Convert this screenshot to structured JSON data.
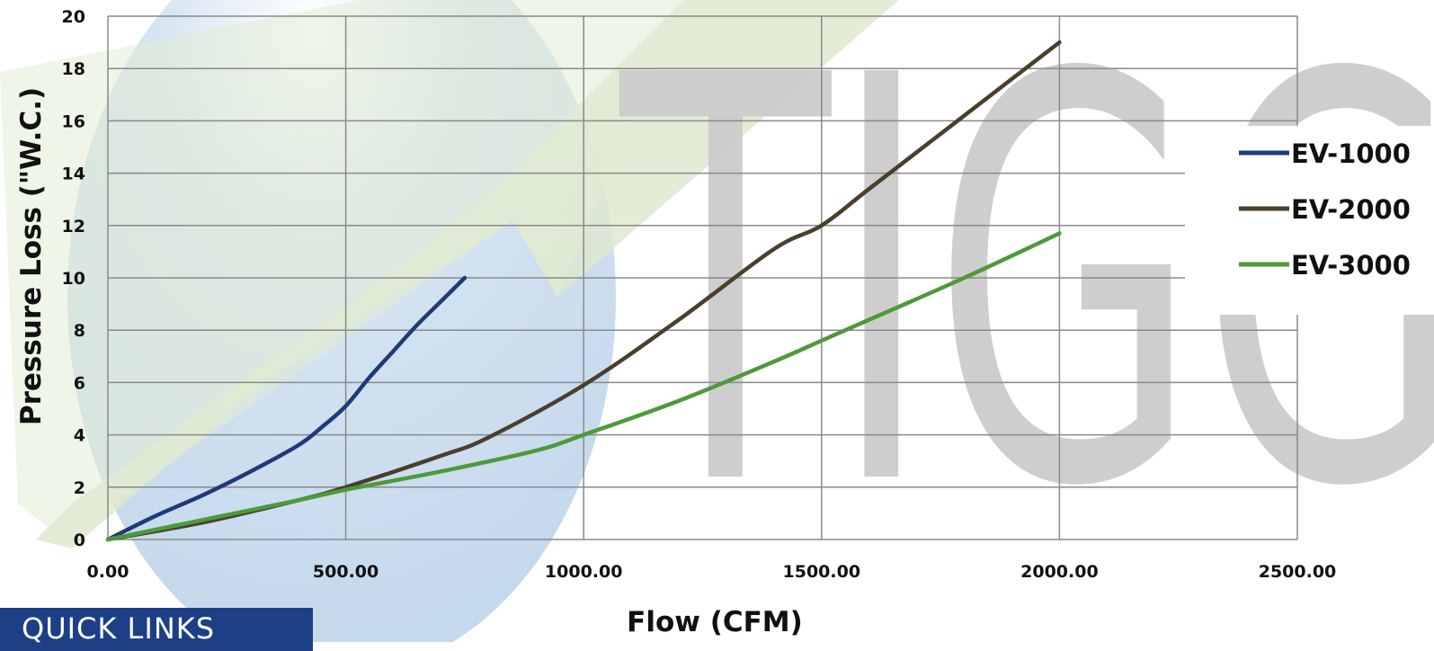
{
  "chart_data": {
    "type": "line",
    "title": "",
    "xlabel": "Flow (CFM)",
    "ylabel": "Pressure Loss (\"W.C.)",
    "xlim": [
      0,
      2500
    ],
    "ylim": [
      0,
      20
    ],
    "x_ticks": [
      "0.00",
      "500.00",
      "1000.00",
      "1500.00",
      "2000.00",
      "2500.00"
    ],
    "y_ticks": [
      "0",
      "2",
      "4",
      "6",
      "8",
      "10",
      "12",
      "14",
      "16",
      "18",
      "20"
    ],
    "grid": true,
    "legend_position": "right",
    "series": [
      {
        "name": "EV-1000",
        "color": "#1f3a7a",
        "points": [
          [
            0,
            0
          ],
          [
            100,
            0.9
          ],
          [
            200,
            1.7
          ],
          [
            300,
            2.6
          ],
          [
            400,
            3.6
          ],
          [
            450,
            4.3
          ],
          [
            500,
            5.1
          ],
          [
            550,
            6.2
          ],
          [
            600,
            7.2
          ],
          [
            650,
            8.2
          ],
          [
            700,
            9.1
          ],
          [
            750,
            10
          ]
        ]
      },
      {
        "name": "EV-2000",
        "color": "#4a3f2c",
        "points": [
          [
            0,
            0
          ],
          [
            200,
            0.65
          ],
          [
            400,
            1.5
          ],
          [
            500,
            2
          ],
          [
            700,
            3.2
          ],
          [
            800,
            3.9
          ],
          [
            1000,
            5.9
          ],
          [
            1200,
            8.4
          ],
          [
            1400,
            11.1
          ],
          [
            1500,
            12.0
          ],
          [
            1600,
            13.4
          ],
          [
            1800,
            16.2
          ],
          [
            2000,
            19
          ]
        ]
      },
      {
        "name": "EV-3000",
        "color": "#4c9a3a",
        "points": [
          [
            0,
            0
          ],
          [
            200,
            0.75
          ],
          [
            400,
            1.5
          ],
          [
            500,
            1.9
          ],
          [
            700,
            2.6
          ],
          [
            900,
            3.4
          ],
          [
            1000,
            4.0
          ],
          [
            1200,
            5.3
          ],
          [
            1400,
            6.8
          ],
          [
            1500,
            7.6
          ],
          [
            1600,
            8.4
          ],
          [
            1800,
            10.0
          ],
          [
            2000,
            11.7
          ]
        ]
      }
    ]
  },
  "watermark": {
    "text": "TIGG",
    "color": "#cccccc"
  },
  "footer": {
    "quick_links_label": "QUICK LINKS"
  }
}
